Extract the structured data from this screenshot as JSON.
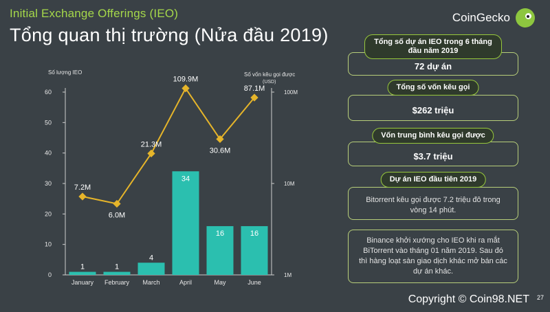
{
  "header": {
    "kicker": "Initial Exchange Offerings (IEO)",
    "title": "Tổng quan thị trường (Nửa đầu 2019)",
    "brand": "CoinGecko",
    "brand_icon": "gecko-logo-icon"
  },
  "colors": {
    "background": "#3a4146",
    "bar": "#2bbfaf",
    "line": "#e6b52a",
    "accent": "#a5d84a"
  },
  "chart_data": {
    "type": "bar",
    "categories": [
      "January",
      "February",
      "March",
      "April",
      "May",
      "June"
    ],
    "series": [
      {
        "values": [
          1,
          1,
          4,
          34,
          16,
          16
        ],
        "axis": "left"
      },
      {
        "values": [
          7.2,
          6.0,
          21.3,
          109.9,
          30.6,
          87.1
        ],
        "labels": [
          "7.2M",
          "6.0M",
          "21.3M",
          "109.9M",
          "30.6M",
          "87.1M"
        ],
        "axis": "right",
        "scale": "log",
        "type": "line"
      }
    ],
    "ylabel_left": "Số lượng IEO",
    "ylabel_right": "Số vốn kêu gọi được (USD)",
    "ylim_left": [
      0,
      60
    ],
    "yticks_left": [
      0,
      10,
      20,
      30,
      40,
      50,
      60
    ],
    "ylim_right": [
      1,
      100
    ],
    "yticks_right_labels": [
      "1M",
      "10M",
      "100M"
    ],
    "grid": false
  },
  "stats": [
    {
      "pill": "Tổng số dự án IEO trong 6 tháng đầu năm 2019",
      "value": "72 dự án"
    },
    {
      "pill": "Tổng số vốn kêu gọi",
      "value": "$262 triệu"
    },
    {
      "pill": "Vốn trung bình kêu gọi được",
      "value": "$3.7 triệu"
    },
    {
      "pill": "Dự án IEO đầu tiên 2019",
      "value": "Bitorrent kêu gọi được 7.2 triệu đô trong vòng 14 phút."
    }
  ],
  "note": "Binance khởi xướng cho IEO khi ra mắt BiTorrent vào tháng 01 năm 2019. Sau đó thì hàng loạt sàn giao dịch khác mở bán các dự án khác.",
  "footer": {
    "copyright": "Copyright © Coin98.NET",
    "page": "27"
  }
}
